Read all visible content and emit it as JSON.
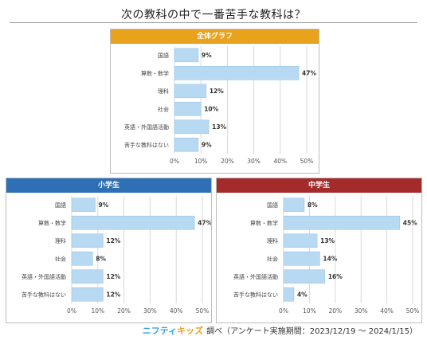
{
  "title": "次の教科の中で一番苦手な教科は？",
  "footer": {
    "logo_nifty": "ニフティ",
    "logo_kids": "キッズ",
    "text": "調べ（アンケート実施期間：2023/12/19 ～ 2024/1/15）"
  },
  "colors": {
    "bar": "#b8d9f2",
    "bar_stroke": "#9cc6e6",
    "grid": "#d9d9d9",
    "overall_head": "#e8a21c",
    "elementary_head": "#2f6fb5",
    "junior_head": "#a52a2a"
  },
  "chart_data": [
    {
      "type": "bar",
      "orientation": "horizontal",
      "title": "全体グラフ",
      "categories": [
        "国語",
        "算数・数学",
        "理科",
        "社会",
        "英語・外国語活動",
        "苦手な教科はない"
      ],
      "values": [
        9,
        47,
        12,
        10,
        13,
        9
      ],
      "value_suffix": "%",
      "xlim": [
        0,
        50
      ],
      "xticks": [
        "0%",
        "10%",
        "20%",
        "30%",
        "40%",
        "50%"
      ],
      "grid": true
    },
    {
      "type": "bar",
      "orientation": "horizontal",
      "title": "小学生",
      "categories": [
        "国語",
        "算数・数学",
        "理科",
        "社会",
        "英語・外国語活動",
        "苦手な教科はない"
      ],
      "values": [
        9,
        47,
        12,
        8,
        12,
        12
      ],
      "value_suffix": "%",
      "xlim": [
        0,
        50
      ],
      "xticks": [
        "0%",
        "10%",
        "20%",
        "30%",
        "40%",
        "50%"
      ],
      "grid": true
    },
    {
      "type": "bar",
      "orientation": "horizontal",
      "title": "中学生",
      "categories": [
        "国語",
        "算数・数学",
        "理科",
        "社会",
        "英語・外国語活動",
        "苦手な教科はない"
      ],
      "values": [
        8,
        45,
        13,
        14,
        16,
        4
      ],
      "value_suffix": "%",
      "xlim": [
        0,
        50
      ],
      "xticks": [
        "0%",
        "10%",
        "20%",
        "30%",
        "40%",
        "50%"
      ],
      "grid": true
    }
  ]
}
